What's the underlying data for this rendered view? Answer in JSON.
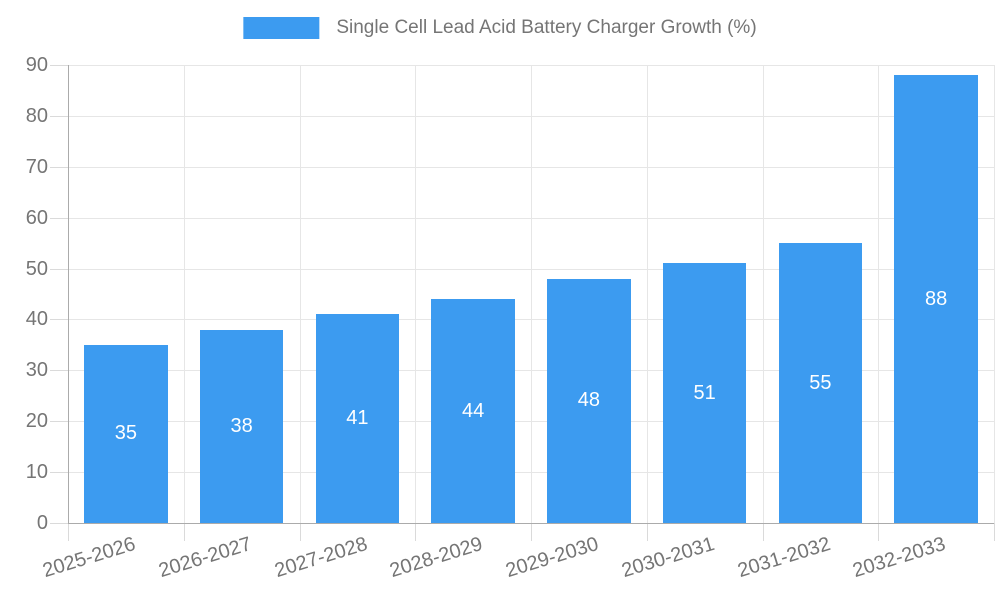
{
  "chart_data": {
    "type": "bar",
    "title": "Single Cell Lead Acid Battery Charger Growth (%)",
    "categories": [
      "2025-2026",
      "2026-2027",
      "2027-2028",
      "2028-2029",
      "2029-2030",
      "2030-2031",
      "2031-2032",
      "2032-2033"
    ],
    "values": [
      35,
      38,
      41,
      44,
      48,
      51,
      55,
      88
    ],
    "xlabel": "",
    "ylabel": "",
    "ylim": [
      0,
      90
    ],
    "yticks": [
      0,
      10,
      20,
      30,
      40,
      50,
      60,
      70,
      80,
      90
    ],
    "grid": true,
    "legend_position": "top",
    "colors": {
      "bar": "#3c9bf0",
      "value_label": "#ffffff",
      "axis_text": "#757575",
      "gridline": "#e6e6e6",
      "axis_line": "#ababab",
      "tick": "#dadada",
      "background": "#ffffff"
    }
  }
}
